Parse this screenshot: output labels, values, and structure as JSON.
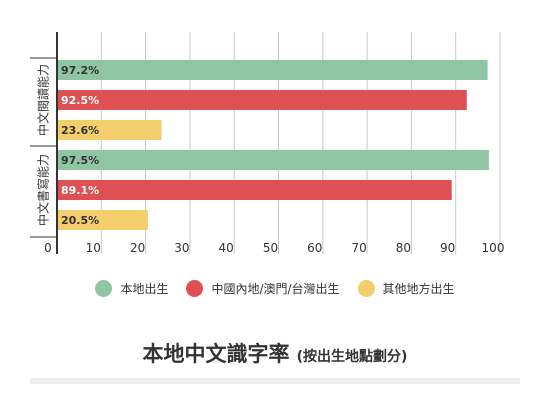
{
  "title": "本地中文識字率",
  "subtitle": "(按出生地點劃分)",
  "chart_data": {
    "type": "bar",
    "orientation": "horizontal",
    "categories": [
      "中文閱讀能力",
      "中文書寫能力"
    ],
    "series": [
      {
        "name": "本地出生",
        "color": "#8fc5a3",
        "values": [
          97.2,
          97.5
        ]
      },
      {
        "name": "中國內地/澳門/台灣出生",
        "color": "#df5055",
        "values": [
          92.5,
          89.1
        ]
      },
      {
        "name": "其他地方出生",
        "color": "#f2cf6c",
        "values": [
          23.6,
          20.5
        ]
      }
    ],
    "xlim": [
      0,
      100
    ],
    "xticks": [
      0,
      10,
      20,
      30,
      40,
      50,
      60,
      70,
      80,
      90,
      100
    ],
    "value_suffix": "%",
    "grid": true,
    "legend_position": "bottom"
  }
}
